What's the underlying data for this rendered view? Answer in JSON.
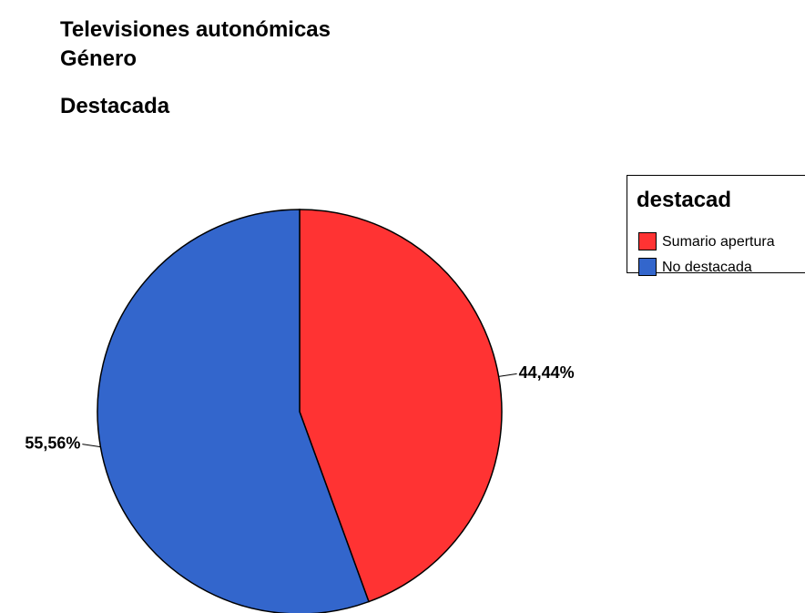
{
  "chart_data": {
    "type": "pie",
    "title": [
      "Televisiones autonómicas",
      "Género"
    ],
    "subtitle": "Destacada",
    "categories": [
      "Sumario apertura",
      "No destacada"
    ],
    "values": [
      44.44,
      55.56
    ],
    "value_labels": [
      "44,44%",
      "55,56%"
    ],
    "colors": [
      "#ff3333",
      "#3366cc"
    ],
    "legend": {
      "title": "destacad",
      "position": "right"
    }
  }
}
